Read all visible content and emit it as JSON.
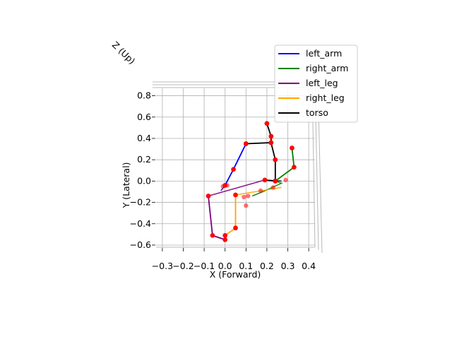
{
  "chart_data": {
    "type": "line",
    "projection": "3d skeleton, viewed from above",
    "xlabel": "X (Forward)",
    "ylabel": "Y (Lateral)",
    "zlabel": "Z (Up)",
    "xlim": [
      -0.33,
      0.43
    ],
    "ylim": [
      -0.62,
      0.87
    ],
    "x_ticks": [
      -0.3,
      -0.2,
      -0.1,
      0.0,
      0.1,
      0.2,
      0.3,
      0.4
    ],
    "x_tick_labels": [
      "−0.3",
      "−0.2",
      "−0.1",
      "0.0",
      "0.1",
      "0.2",
      "0.3",
      "0.4"
    ],
    "y_ticks": [
      -0.6,
      -0.4,
      -0.2,
      0.0,
      0.2,
      0.4,
      0.6,
      0.8
    ],
    "y_tick_labels": [
      "−0.6",
      "−0.4",
      "−0.2",
      "0.0",
      "0.2",
      "0.4",
      "0.6",
      "0.8"
    ],
    "grid": true,
    "legend_position": "top-right",
    "joint_color": "#ff0000",
    "series": [
      {
        "name": "left_arm",
        "color": "#0000ff",
        "points": [
          [
            0.0,
            -0.04
          ],
          [
            0.04,
            0.11
          ],
          [
            0.1,
            0.35
          ]
        ]
      },
      {
        "name": "right_arm",
        "color": "#008000",
        "points": [
          [
            0.24,
            0.0
          ],
          [
            0.33,
            0.13
          ],
          [
            0.32,
            0.31
          ]
        ]
      },
      {
        "name": "left_leg",
        "color": "#800080",
        "points": [
          [
            -0.08,
            -0.14
          ],
          [
            -0.06,
            -0.51
          ],
          [
            0.0,
            -0.55
          ]
        ]
      },
      {
        "name": "right_leg",
        "color": "#ffa500",
        "points": [
          [
            0.05,
            -0.13
          ],
          [
            0.05,
            -0.44
          ],
          [
            0.0,
            -0.51
          ]
        ]
      },
      {
        "name": "torso",
        "color": "#000000",
        "points": [
          [
            0.2,
            0.54
          ],
          [
            0.22,
            0.42
          ],
          [
            0.22,
            0.36
          ],
          [
            0.1,
            0.35
          ],
          [
            0.22,
            0.36
          ],
          [
            0.24,
            0.2
          ],
          [
            0.24,
            0.0
          ],
          [
            0.19,
            0.01
          ]
        ]
      }
    ],
    "secondary_segments": [
      {
        "series": "left_arm",
        "points": [
          [
            0.0,
            -0.04
          ],
          [
            -0.02,
            -0.09
          ]
        ]
      },
      {
        "series": "right_arm",
        "points": [
          [
            0.24,
            0.0
          ],
          [
            0.27,
            -0.02
          ],
          [
            0.18,
            -0.1
          ],
          [
            0.13,
            -0.14
          ]
        ]
      },
      {
        "series": "left_leg",
        "points": [
          [
            -0.08,
            -0.14
          ],
          [
            0.19,
            0.01
          ]
        ]
      },
      {
        "series": "right_leg",
        "points": [
          [
            0.05,
            -0.13
          ],
          [
            0.27,
            -0.06
          ]
        ]
      },
      {
        "series": "torso",
        "points": [
          [
            0.19,
            0.01
          ],
          [
            0.27,
            0.0
          ]
        ]
      }
    ],
    "extra_joints": [
      [
        0.01,
        -0.04
      ],
      [
        -0.01,
        -0.05
      ],
      [
        0.11,
        -0.14
      ],
      [
        0.17,
        -0.09
      ],
      [
        0.23,
        -0.06
      ],
      [
        0.09,
        -0.15
      ],
      [
        0.1,
        -0.23
      ],
      [
        0.29,
        0.01
      ]
    ]
  }
}
